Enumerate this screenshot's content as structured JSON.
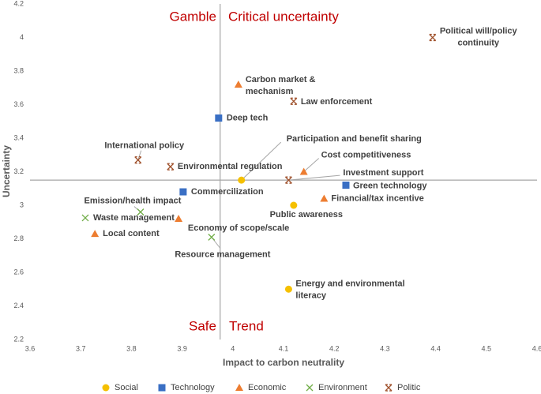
{
  "chart_data": {
    "type": "scatter",
    "x_label": "Impact to carbon neutrality",
    "y_label": "Uncertainty",
    "annotations": [
      "Gamble",
      "Critical uncertainty",
      "Safe",
      "Trend"
    ],
    "reference_lines": {
      "x": 3.975,
      "y": 3.15,
      "color": "#a6a6a6"
    },
    "xlim": [
      3.6,
      4.6
    ],
    "xticks": [
      3.6,
      3.7,
      3.8,
      3.9,
      4,
      4.1,
      4.2,
      4.3,
      4.4,
      4.5,
      4.6
    ],
    "ylim": [
      2.2,
      4.2
    ],
    "yticks": [
      2.2,
      2.4,
      2.6,
      2.8,
      3,
      3.2,
      3.4,
      3.6,
      3.8,
      4,
      4.2
    ],
    "grid": false,
    "legend": "bottom",
    "series": [
      {
        "name": "Social",
        "color": "#f5c000",
        "marker": "circle",
        "labels": [
          "Participation and benefit sharing",
          "Public awareness",
          "Energy and environmental literacy"
        ],
        "x": [
          4.017,
          4.12,
          4.11
        ],
        "values": [
          3.15,
          3.0,
          2.5
        ]
      },
      {
        "name": "Technology",
        "color": "#3a6fc4",
        "marker": "square",
        "labels": [
          "Deep tech",
          "Commercilization",
          "Green technology"
        ],
        "x": [
          3.972,
          3.902,
          4.223
        ],
        "values": [
          3.52,
          3.08,
          3.12
        ]
      },
      {
        "name": "Economic",
        "color": "#ed7d31",
        "marker": "triangle",
        "labels": [
          "Carbon market & mechanism",
          "Cost competitiveness",
          "Financial/tax incentive",
          "Economy of scope/scale",
          "Local content"
        ],
        "x": [
          4.011,
          4.14,
          4.18,
          3.893,
          3.728
        ],
        "values": [
          3.72,
          3.2,
          3.04,
          2.92,
          2.83
        ]
      },
      {
        "name": "Environment",
        "color": "#70ad47",
        "marker": "x",
        "labels": [
          "Waste management",
          "Emission/health impact",
          "Resource management"
        ],
        "x": [
          3.709,
          3.818,
          3.958
        ],
        "values": [
          2.925,
          2.96,
          2.81
        ]
      },
      {
        "name": "Politic",
        "color": "#a0522d",
        "marker": "star",
        "labels": [
          "Political will/policy continuity",
          "Law enforcement",
          "International policy",
          "Environmental regulation",
          "Investment support"
        ],
        "x": [
          4.394,
          4.12,
          3.813,
          3.877,
          4.11
        ],
        "values": [
          4.0,
          3.62,
          3.27,
          3.23,
          3.15
        ]
      }
    ]
  }
}
